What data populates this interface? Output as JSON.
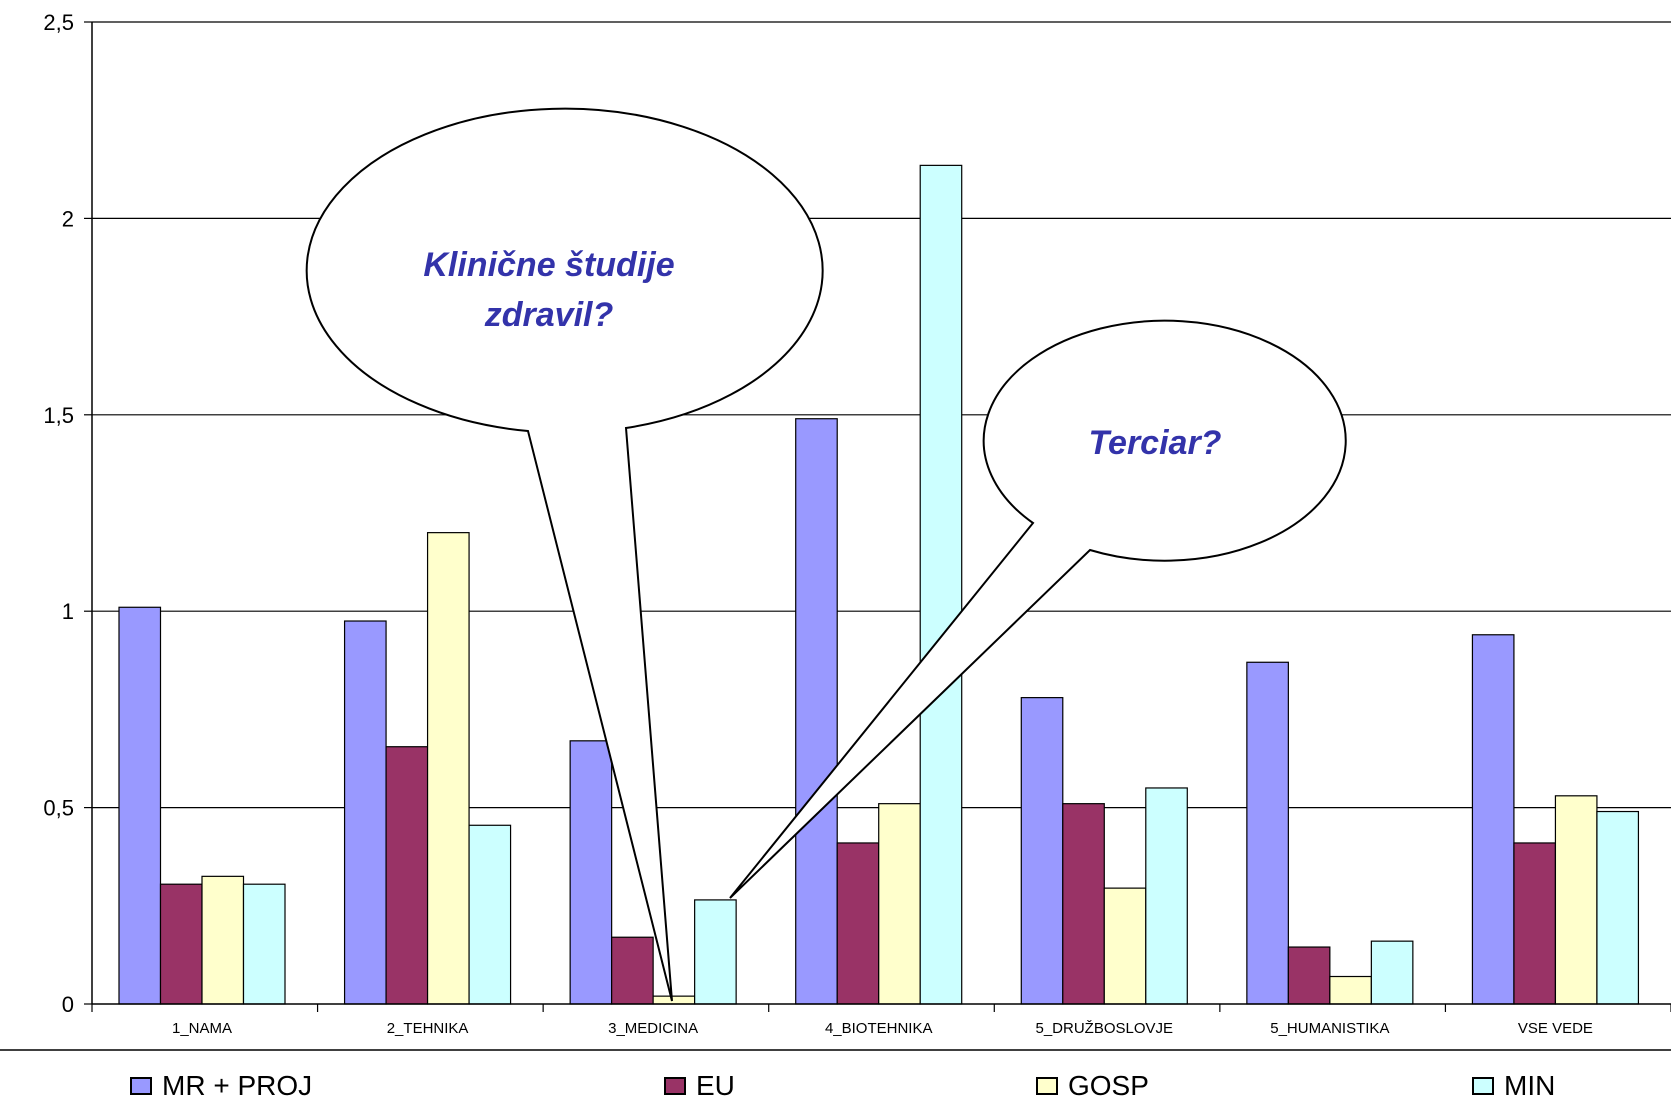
{
  "chart_data": {
    "type": "bar",
    "categories": [
      "1_NAMA",
      "2_TEHNIKA",
      "3_MEDICINA",
      "4_BIOTEHNIKA",
      "5_DRUŽBOSLOVJE",
      "5_HUMANISTIKA",
      "VSE VEDE"
    ],
    "series": [
      {
        "name": "MR + PROJ",
        "color": "#9999ff",
        "values": [
          1.01,
          0.975,
          0.67,
          1.49,
          0.78,
          0.87,
          0.94
        ]
      },
      {
        "name": "EU",
        "color": "#993366",
        "values": [
          0.305,
          0.655,
          0.17,
          0.41,
          0.51,
          0.145,
          0.41
        ]
      },
      {
        "name": "GOSP",
        "color": "#ffffcc",
        "values": [
          0.325,
          1.2,
          0.02,
          0.51,
          0.295,
          0.07,
          0.53
        ]
      },
      {
        "name": "MIN",
        "color": "#ccffff",
        "values": [
          0.305,
          0.455,
          0.265,
          2.135,
          0.55,
          0.16,
          0.49
        ]
      }
    ],
    "yticks": [
      "0",
      "0,5",
      "1",
      "1,5",
      "2",
      "2,5"
    ],
    "ylim": [
      0,
      2.5
    ],
    "grid": true,
    "legend": "bottom",
    "annotations": [
      {
        "text_lines": [
          "Klinične študije",
          "zdravil?"
        ],
        "points_to": "3_MEDICINA / GOSP"
      },
      {
        "text_lines": [
          "Terciar?"
        ],
        "points_to": "3_MEDICINA / MIN"
      }
    ]
  }
}
